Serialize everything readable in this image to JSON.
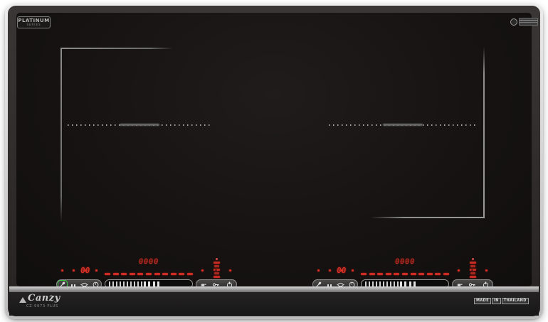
{
  "brand": {
    "platinum_badge": {
      "line1": "PLATINUM",
      "line2": "SERIES"
    },
    "logo_text": "Canzy",
    "model": "CZ-9973 PLUS",
    "made_in": [
      "MADE",
      "IN",
      "THAILAND"
    ]
  },
  "colors": {
    "glass_black": "#161312",
    "bezel_gray": "#d9d9d9",
    "frame_dark": "#2a2726",
    "led_red": "#d12f26",
    "active_green": "#3fc24d",
    "zone_line_gray": "#7e7e7e"
  },
  "panel": {
    "dash_count": 11,
    "slider_thin_ticks": 10,
    "slider_thick_ticks": 4,
    "tower_segments": 5,
    "left_button_icons": [
      "function-spoon-icon",
      "pause-icon",
      "pot-icon",
      "timer-icon"
    ],
    "right_button_icons": [
      "boost-pan-icon",
      "lock-key-icon",
      "power-icon"
    ]
  },
  "zones": [
    {
      "name": "left",
      "level_display": "00",
      "timer_display": "0000",
      "function_key_active": true
    },
    {
      "name": "right",
      "level_display": "00",
      "timer_display": "0000",
      "function_key_active": false
    }
  ]
}
